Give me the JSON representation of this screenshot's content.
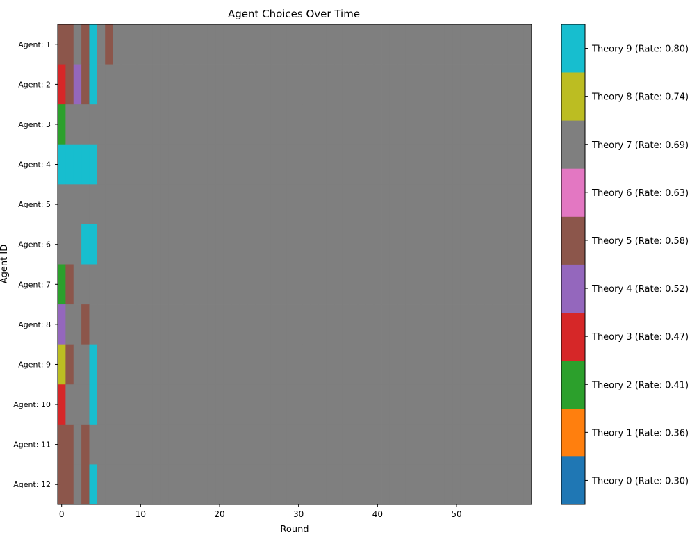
{
  "chart_data": {
    "type": "heatmap",
    "title": "Agent Choices Over Time",
    "xlabel": "Round",
    "ylabel": "Agent ID",
    "xlim": [
      -0.5,
      59.5
    ],
    "xticks": [
      0,
      10,
      20,
      30,
      40,
      50
    ],
    "agents": [
      "Agent: 1",
      "Agent: 2",
      "Agent: 3",
      "Agent: 4",
      "Agent: 5",
      "Agent: 6",
      "Agent: 7",
      "Agent: 8",
      "Agent: 9",
      "Agent: 10",
      "Agent: 11",
      "Agent: 12"
    ],
    "rounds": 60,
    "default_theory": 7,
    "choices": [
      [
        5,
        5,
        7,
        5,
        9,
        7,
        5
      ],
      [
        3,
        5,
        4,
        5,
        9
      ],
      [
        2
      ],
      [
        9,
        9,
        9,
        9,
        9
      ],
      [],
      [
        7,
        7,
        7,
        9,
        9
      ],
      [
        2,
        5
      ],
      [
        4,
        7,
        7,
        5
      ],
      [
        8,
        5,
        7,
        7,
        9
      ],
      [
        3,
        7,
        7,
        7,
        9
      ],
      [
        5,
        5,
        7,
        5
      ],
      [
        5,
        5,
        7,
        5,
        9
      ]
    ],
    "theories": [
      {
        "label": "Theory 0 (Rate: 0.30)",
        "color": "#1f77b4"
      },
      {
        "label": "Theory 1 (Rate: 0.36)",
        "color": "#ff7f0e"
      },
      {
        "label": "Theory 2 (Rate: 0.41)",
        "color": "#2ca02c"
      },
      {
        "label": "Theory 3 (Rate: 0.47)",
        "color": "#d62728"
      },
      {
        "label": "Theory 4 (Rate: 0.52)",
        "color": "#9467bd"
      },
      {
        "label": "Theory 5 (Rate: 0.58)",
        "color": "#8c564b"
      },
      {
        "label": "Theory 6 (Rate: 0.63)",
        "color": "#e377c2"
      },
      {
        "label": "Theory 7 (Rate: 0.69)",
        "color": "#7f7f7f"
      },
      {
        "label": "Theory 8 (Rate: 0.74)",
        "color": "#bcbd22"
      },
      {
        "label": "Theory 9 (Rate: 0.80)",
        "color": "#17becf"
      }
    ]
  }
}
